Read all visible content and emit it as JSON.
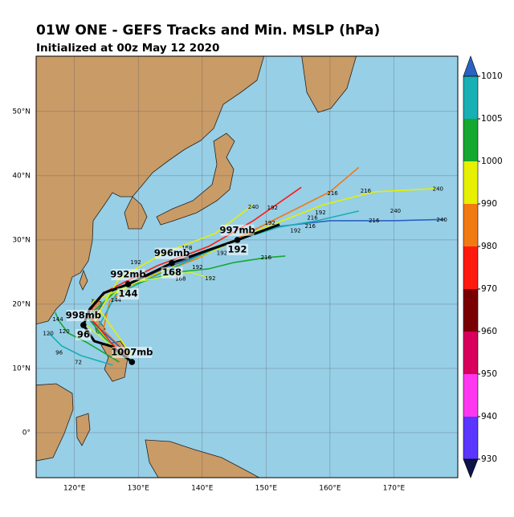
{
  "chart_data": {
    "type": "track-map",
    "title": "01W ONE - GEFS Tracks and Min. MSLP (hPa)",
    "subtitle": "Initialized at 00z May 12 2020",
    "xlim": [
      114,
      180
    ],
    "ylim": [
      -7,
      58.6
    ],
    "xticks": [
      {
        "value": 120,
        "label": "120°E"
      },
      {
        "value": 130,
        "label": "130°E"
      },
      {
        "value": 140,
        "label": "140°E"
      },
      {
        "value": 150,
        "label": "150°E"
      },
      {
        "value": 160,
        "label": "160°E"
      },
      {
        "value": 170,
        "label": "170°E"
      }
    ],
    "yticks": [
      {
        "value": 0,
        "label": "0°"
      },
      {
        "value": 10,
        "label": "10°N"
      },
      {
        "value": 20,
        "label": "20°N"
      },
      {
        "value": 30,
        "label": "30°N"
      },
      {
        "value": 40,
        "label": "40°N"
      },
      {
        "value": 50,
        "label": "50°N"
      }
    ],
    "grid": true,
    "colorbar": {
      "ticks": [
        1010,
        1005,
        1000,
        990,
        980,
        970,
        960,
        950,
        940,
        930
      ],
      "colors": [
        "#17b0b4",
        "#14a830",
        "#e6f000",
        "#f27a12",
        "#ff1a10",
        "#7a0000",
        "#d8005a",
        "#ff38f0",
        "#5a36ff"
      ],
      "over": "#2a62c4",
      "under": "#0c1448"
    },
    "tracks": [
      {
        "color": "#f27a12",
        "points": [
          [
            128.5,
            12
          ],
          [
            124.5,
            16
          ],
          [
            125.5,
            20.5
          ],
          [
            131,
            24
          ],
          [
            139,
            27
          ],
          [
            147,
            31
          ],
          [
            154,
            34.5
          ],
          [
            160,
            37.5
          ],
          [
            164.5,
            41.3
          ]
        ]
      },
      {
        "color": "#e6f000",
        "points": [
          [
            127.5,
            12
          ],
          [
            123,
            17
          ],
          [
            125,
            21
          ],
          [
            132,
            24.5
          ],
          [
            141,
            28
          ],
          [
            150,
            32
          ],
          [
            159,
            35.5
          ],
          [
            167,
            37.5
          ],
          [
            176.5,
            38
          ]
        ]
      },
      {
        "color": "#2a62c4",
        "points": [
          [
            128,
            12.5
          ],
          [
            122.5,
            17.5
          ],
          [
            126,
            22
          ],
          [
            134,
            25.5
          ],
          [
            143,
            29
          ],
          [
            151,
            32
          ],
          [
            160,
            33
          ],
          [
            170,
            33
          ],
          [
            178,
            33.2
          ]
        ]
      },
      {
        "color": "#17b0b4",
        "points": [
          [
            128,
            11.5
          ],
          [
            123.5,
            16
          ],
          [
            126.5,
            21.5
          ],
          [
            135,
            25.5
          ],
          [
            144,
            29.5
          ],
          [
            152,
            32
          ],
          [
            158,
            33
          ],
          [
            164.5,
            34.5
          ]
        ]
      },
      {
        "color": "#14a830",
        "points": [
          [
            127,
            12
          ],
          [
            122,
            18
          ],
          [
            127,
            22.5
          ],
          [
            136,
            25
          ],
          [
            141,
            25.5
          ],
          [
            145,
            26.5
          ],
          [
            150,
            27.25
          ],
          [
            153,
            27.5
          ]
        ]
      },
      {
        "color": "#ff1a10",
        "points": [
          [
            127,
            12.5
          ],
          [
            122,
            18.5
          ],
          [
            125,
            22
          ],
          [
            133,
            26
          ],
          [
            141,
            29
          ],
          [
            148,
            33
          ],
          [
            155.5,
            38.2
          ]
        ]
      },
      {
        "color": "#c6f03c",
        "points": [
          [
            126.5,
            13
          ],
          [
            121.5,
            17
          ],
          [
            123,
            20.5
          ],
          [
            130,
            23.5
          ],
          [
            138,
            25
          ],
          [
            141.5,
            24
          ]
        ]
      },
      {
        "color": "#14a830",
        "points": [
          [
            127,
            11
          ],
          [
            122,
            14
          ],
          [
            119,
            15.5
          ],
          [
            117.5,
            17.5
          ],
          [
            117,
            18.7
          ]
        ]
      },
      {
        "color": "#17b0b4",
        "points": [
          [
            126,
            10.5
          ],
          [
            121,
            12
          ],
          [
            118,
            13.5
          ],
          [
            116,
            15.5
          ]
        ]
      },
      {
        "color": "#e6f000",
        "points": [
          [
            129,
            12
          ],
          [
            124,
            19
          ],
          [
            127,
            24
          ],
          [
            134,
            28
          ],
          [
            142,
            31
          ],
          [
            148,
            35.5
          ]
        ]
      }
    ],
    "hour_labels": [
      {
        "text": "240",
        "lon": 148,
        "lat": 35.1
      },
      {
        "text": "240",
        "lon": 176.9,
        "lat": 37.9
      },
      {
        "text": "240",
        "lon": 170.25,
        "lat": 34.5
      },
      {
        "text": "240",
        "lon": 177.5,
        "lat": 33.1
      },
      {
        "text": "216",
        "lon": 165.6,
        "lat": 37.6
      },
      {
        "text": "216",
        "lon": 160.4,
        "lat": 37.25
      },
      {
        "text": "216",
        "lon": 157.25,
        "lat": 33.4
      },
      {
        "text": "216",
        "lon": 156.9,
        "lat": 32.1
      },
      {
        "text": "216",
        "lon": 166.9,
        "lat": 33
      },
      {
        "text": "216",
        "lon": 150,
        "lat": 27.25
      },
      {
        "text": "192",
        "lon": 151,
        "lat": 35
      },
      {
        "text": "192",
        "lon": 158.5,
        "lat": 34.25
      },
      {
        "text": "192",
        "lon": 154.6,
        "lat": 31.4
      },
      {
        "text": "192",
        "lon": 150.6,
        "lat": 32.6
      },
      {
        "text": "192",
        "lon": 139.25,
        "lat": 25.75
      },
      {
        "text": "192",
        "lon": 141.25,
        "lat": 24
      },
      {
        "text": "192",
        "lon": 143.1,
        "lat": 27.9
      },
      {
        "text": "192",
        "lon": 129.6,
        "lat": 26.5
      },
      {
        "text": "168",
        "lon": 137.6,
        "lat": 28.75
      },
      {
        "text": "168",
        "lon": 136.6,
        "lat": 23.9
      },
      {
        "text": "144",
        "lon": 126.5,
        "lat": 20.6
      },
      {
        "text": "144",
        "lon": 117.4,
        "lat": 17.6
      },
      {
        "text": "120",
        "lon": 115.9,
        "lat": 15.4
      },
      {
        "text": "120",
        "lon": 118.4,
        "lat": 15.75
      },
      {
        "text": "96",
        "lon": 117.6,
        "lat": 12.4
      },
      {
        "text": "72",
        "lon": 120.6,
        "lat": 10.9
      }
    ],
    "mean_track": {
      "color": "#000000",
      "points": [
        [
          129,
          11
        ],
        [
          125.9,
          13.4
        ],
        [
          123.1,
          14.25
        ],
        [
          121.4,
          16.75
        ],
        [
          122.4,
          19.25
        ],
        [
          124.6,
          21.75
        ],
        [
          128.4,
          23.1
        ],
        [
          135.25,
          26.4
        ],
        [
          140.9,
          28.4
        ],
        [
          145.5,
          30
        ],
        [
          152.1,
          32.4
        ]
      ]
    },
    "mean_markers": [
      {
        "lon": 129,
        "lat": 11,
        "pressure": "1007mb"
      },
      {
        "lon": 121.4,
        "lat": 16.75,
        "pressure": "998mb",
        "hour": "96"
      },
      {
        "lon": 128.4,
        "lat": 23.1,
        "pressure": "992mb",
        "hour": "144"
      },
      {
        "lon": 135.25,
        "lat": 26.4,
        "pressure": "996mb",
        "hour": "168"
      },
      {
        "lon": 145.5,
        "lat": 30,
        "pressure": "997mb",
        "hour": "192"
      }
    ]
  }
}
